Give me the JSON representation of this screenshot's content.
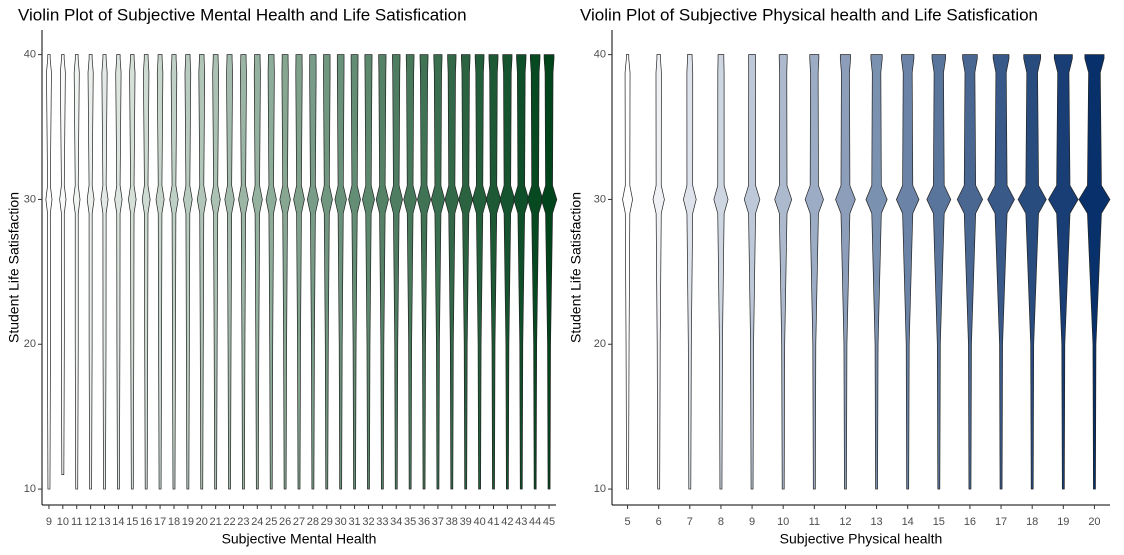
{
  "chart_data": [
    {
      "type": "violin",
      "title": "Violin Plot of Subjective Mental Health and Life Satisfication",
      "xlabel": "Subjective Mental Health",
      "ylabel": "Student Life Satisfaction",
      "categories": [
        "9",
        "10",
        "11",
        "12",
        "13",
        "14",
        "15",
        "16",
        "17",
        "18",
        "19",
        "20",
        "21",
        "22",
        "23",
        "24",
        "25",
        "26",
        "27",
        "28",
        "29",
        "30",
        "31",
        "32",
        "33",
        "34",
        "35",
        "36",
        "37",
        "38",
        "39",
        "40",
        "41",
        "42",
        "43",
        "44",
        "45"
      ],
      "min": [
        10,
        11,
        10,
        10,
        10,
        10,
        10,
        10,
        10,
        10,
        10,
        10,
        10,
        10,
        10,
        10,
        10,
        10,
        10,
        10,
        10,
        10,
        10,
        10,
        10,
        10,
        10,
        10,
        10,
        10,
        10,
        10,
        10,
        10,
        10,
        10,
        10
      ],
      "max": [
        40,
        40,
        40,
        40,
        40,
        40,
        40,
        40,
        40,
        40,
        40,
        40,
        40,
        40,
        40,
        40,
        40,
        40,
        40,
        40,
        40,
        40,
        40,
        40,
        40,
        40,
        40,
        40,
        40,
        40,
        40,
        40,
        40,
        40,
        40,
        40,
        40
      ],
      "mode": 30,
      "colors": [
        "#ffffff",
        "#00441b"
      ],
      "ylim": [
        8.9,
        41.7
      ],
      "yticks": [
        10,
        20,
        30,
        40
      ]
    },
    {
      "type": "violin",
      "title": "Violin Plot of Subjective Physical health and Life Satisfication",
      "xlabel": "Subjective Physical health",
      "ylabel": "Student Life Satisfaction",
      "categories": [
        "5",
        "6",
        "7",
        "8",
        "9",
        "10",
        "11",
        "12",
        "13",
        "14",
        "15",
        "16",
        "17",
        "18",
        "19",
        "20"
      ],
      "min": [
        10,
        10,
        10,
        10,
        10,
        10,
        10,
        10,
        10,
        10,
        10,
        10,
        10,
        10,
        10,
        10
      ],
      "max": [
        40,
        40,
        40,
        40,
        40,
        40,
        40,
        40,
        40,
        40,
        40,
        40,
        40,
        40,
        40,
        40
      ],
      "mode": 30,
      "colors": [
        "#ffffff",
        "#08306b"
      ],
      "ylim": [
        8.9,
        41.7
      ],
      "yticks": [
        10,
        20,
        30,
        40
      ]
    }
  ]
}
